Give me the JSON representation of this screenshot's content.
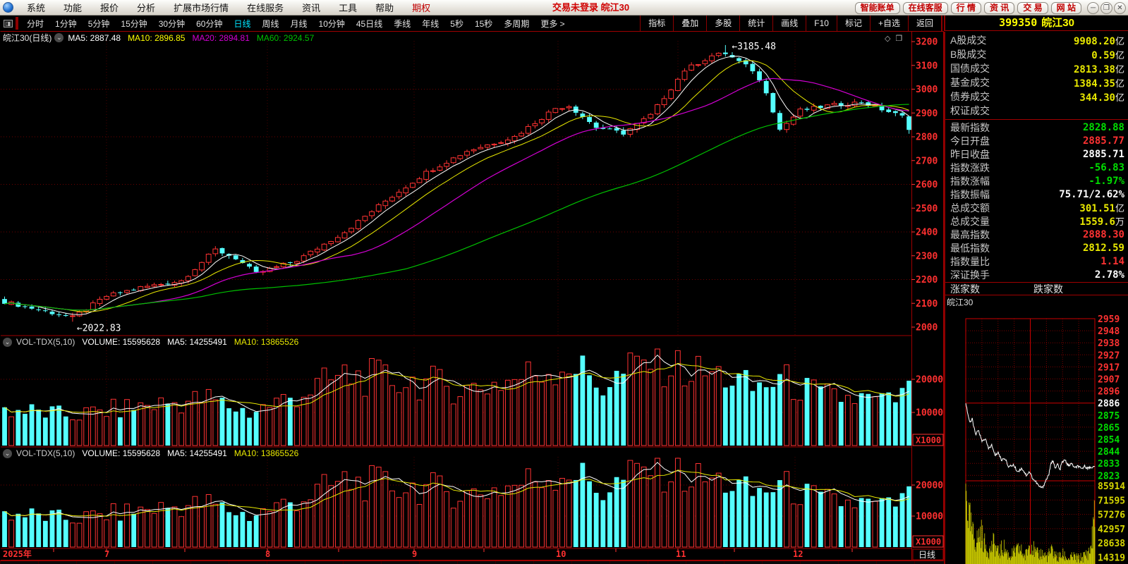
{
  "icons": {
    "chevron_down": "⌄",
    "diamond": "◇",
    "panes": "❐",
    "split": "◨",
    "minimize": "─",
    "restore": "❐",
    "close": "✕",
    "more_arrow": "›"
  },
  "menubar": {
    "items": [
      "系统",
      "功能",
      "报价",
      "分析",
      "扩展市场行情",
      "在线服务",
      "资讯",
      "工具",
      "帮助",
      "期权"
    ],
    "accent_index": 9
  },
  "titlebar": {
    "login": "交易未登录 皖江30",
    "buttons": [
      "智能账单",
      "在线客服",
      "行 情",
      "资 讯",
      "交 易",
      "网 站"
    ]
  },
  "period_bar": {
    "items": [
      "分时",
      "1分钟",
      "5分钟",
      "15分钟",
      "30分钟",
      "60分钟",
      "日线",
      "周线",
      "月线",
      "10分钟",
      "45日线",
      "季线",
      "年线",
      "5秒",
      "15秒",
      "多周期",
      "更多 >"
    ],
    "active_index": 6,
    "right_items": [
      "指标",
      "叠加",
      "多股",
      "统计",
      "画线",
      "F10",
      "标记",
      "+自选",
      "返回"
    ]
  },
  "chart": {
    "title": "皖江30(日线)",
    "ma_items": [
      {
        "text": "MA5: 2887.48",
        "color": "#ffffff"
      },
      {
        "text": "MA10: 2896.85",
        "color": "#ffff00"
      },
      {
        "text": "MA20: 2894.81",
        "color": "#d400d4"
      },
      {
        "text": "MA60: 2924.57",
        "color": "#00c000"
      }
    ],
    "vol_header_items": [
      {
        "text": "VOL-TDX(5,10)",
        "color": "#d0d0d0"
      },
      {
        "text": "VOLUME: 15595628",
        "color": "#ffffff"
      },
      {
        "text": "MA5: 14255491",
        "color": "#ffffff"
      },
      {
        "text": "MA10: 13865526",
        "color": "#e8e800"
      }
    ],
    "annotations": {
      "high": "←3185.48",
      "low": "←2022.83"
    },
    "x1000_label": "X1000",
    "period_box": "日线",
    "vol_axis_labels": [
      "20000",
      "10000"
    ]
  },
  "chart_data": {
    "type": "candlestick",
    "count": 134,
    "y_ticks": [
      3200,
      3100,
      3000,
      2900,
      2800,
      2700,
      2600,
      2500,
      2400,
      2300,
      2200,
      2100,
      2000
    ],
    "dotted_levels": [
      3000,
      2800,
      2600,
      2400,
      2200
    ],
    "months": [
      {
        "label": "2025年",
        "x": 4
      },
      {
        "label": "7",
        "x": 148
      },
      {
        "label": "8",
        "x": 376
      },
      {
        "label": "9",
        "x": 584
      },
      {
        "label": "10",
        "x": 788
      },
      {
        "label": "11",
        "x": 958
      },
      {
        "label": "12",
        "x": 1124
      }
    ],
    "close_anchors": [
      [
        0,
        2106
      ],
      [
        10,
        2040
      ],
      [
        15,
        2130
      ],
      [
        20,
        2166
      ],
      [
        26,
        2195
      ],
      [
        31,
        2325
      ],
      [
        34,
        2290
      ],
      [
        37,
        2225
      ],
      [
        43,
        2280
      ],
      [
        50,
        2400
      ],
      [
        56,
        2530
      ],
      [
        62,
        2650
      ],
      [
        68,
        2740
      ],
      [
        75,
        2800
      ],
      [
        81,
        2920
      ],
      [
        83,
        2930
      ],
      [
        85,
        2885
      ],
      [
        87,
        2840
      ],
      [
        91,
        2815
      ],
      [
        95,
        2890
      ],
      [
        100,
        3080
      ],
      [
        104,
        3140
      ],
      [
        106,
        3150
      ],
      [
        110,
        3080
      ],
      [
        112,
        2990
      ],
      [
        114,
        2830
      ],
      [
        117,
        2910
      ],
      [
        121,
        2930
      ],
      [
        126,
        2945
      ],
      [
        129,
        2915
      ],
      [
        132,
        2885
      ],
      [
        133,
        2828.88
      ]
    ],
    "volume_anchors": [
      [
        0,
        11000
      ],
      [
        10,
        9000
      ],
      [
        20,
        12000
      ],
      [
        30,
        14000
      ],
      [
        36,
        10000
      ],
      [
        44,
        16000
      ],
      [
        50,
        21000
      ],
      [
        56,
        20000
      ],
      [
        62,
        19000
      ],
      [
        68,
        17000
      ],
      [
        75,
        20000
      ],
      [
        83,
        25000
      ],
      [
        88,
        18000
      ],
      [
        95,
        26000
      ],
      [
        101,
        22000
      ],
      [
        106,
        21000
      ],
      [
        110,
        17000
      ],
      [
        114,
        20000
      ],
      [
        120,
        15000
      ],
      [
        126,
        14000
      ],
      [
        130,
        13000
      ],
      [
        133,
        16000
      ]
    ],
    "pinned": {
      "low_index": 10,
      "low": 2022.83,
      "high_index": 106,
      "high": 3185.48,
      "last": {
        "open": 2885.77,
        "high": 2888.3,
        "low": 2812.59,
        "close": 2828.88
      }
    },
    "colors": {
      "up": "#ff3232",
      "down": "#55ffff",
      "ma5": "#ffffff",
      "ma10": "#e8e800",
      "ma20": "#d400d4",
      "ma60": "#00c000",
      "axis": "#ff3030",
      "frame": "#a00000"
    }
  },
  "quote_panel": {
    "code": "399350",
    "name": "皖江30",
    "market_rows": [
      {
        "label": "A股成交",
        "value": "9908.20",
        "unit": "亿"
      },
      {
        "label": "B股成交",
        "value": "0.59",
        "unit": "亿"
      },
      {
        "label": "国债成交",
        "value": "2813.38",
        "unit": "亿"
      },
      {
        "label": "基金成交",
        "value": "1384.35",
        "unit": "亿"
      },
      {
        "label": "债券成交",
        "value": "344.30",
        "unit": "亿"
      },
      {
        "label": "权证成交",
        "value": "",
        "unit": ""
      }
    ],
    "index_rows": [
      {
        "label": "最新指数",
        "value": "2828.88",
        "unit": "",
        "color": "#00dd00"
      },
      {
        "label": "今日开盘",
        "value": "2885.77",
        "unit": "",
        "color": "#ff3232"
      },
      {
        "label": "昨日收盘",
        "value": "2885.71",
        "unit": "",
        "color": "#ffffff"
      },
      {
        "label": "指数涨跌",
        "value": "-56.83",
        "unit": "",
        "color": "#00dd00"
      },
      {
        "label": "指数涨幅",
        "value": "-1.97%",
        "unit": "",
        "color": "#00dd00"
      },
      {
        "label": "指数振幅",
        "value": "75.71/2.62%",
        "unit": "",
        "color": "#ffffff"
      },
      {
        "label": "总成交额",
        "value": "301.51",
        "unit": "亿",
        "color": "#e8e800"
      },
      {
        "label": "总成交量",
        "value": "1559.6",
        "unit": "万",
        "color": "#e8e800"
      },
      {
        "label": "最高指数",
        "value": "2888.30",
        "unit": "",
        "color": "#ff3232"
      },
      {
        "label": "最低指数",
        "value": "2812.59",
        "unit": "",
        "color": "#e8e800"
      },
      {
        "label": "指数量比",
        "value": "1.14",
        "unit": "",
        "color": "#ff3232"
      },
      {
        "label": "深证换手",
        "value": "2.78%",
        "unit": "",
        "color": "#ffffff"
      }
    ],
    "updown": {
      "up_label": "涨家数",
      "down_label": "跌家数"
    },
    "mini_chart": {
      "label": "皖江30",
      "price_ticks": [
        {
          "v": "2959",
          "c": "#ff3232"
        },
        {
          "v": "2948",
          "c": "#ff3232"
        },
        {
          "v": "2938",
          "c": "#ff3232"
        },
        {
          "v": "2927",
          "c": "#ff3232"
        },
        {
          "v": "2917",
          "c": "#ff3232"
        },
        {
          "v": "2907",
          "c": "#ff3232"
        },
        {
          "v": "2896",
          "c": "#ff3232"
        },
        {
          "v": "2886",
          "c": "#ffffff"
        },
        {
          "v": "2875",
          "c": "#00dd00"
        },
        {
          "v": "2865",
          "c": "#00dd00"
        },
        {
          "v": "2854",
          "c": "#00dd00"
        },
        {
          "v": "2844",
          "c": "#00dd00"
        },
        {
          "v": "2833",
          "c": "#00dd00"
        },
        {
          "v": "2823",
          "c": "#00dd00"
        }
      ],
      "volume_ticks": [
        "85914",
        "71595",
        "57276",
        "42957",
        "28638",
        "14319"
      ],
      "prev_close": 2886,
      "line_anchors": [
        [
          0,
          2886
        ],
        [
          4,
          2876
        ],
        [
          8,
          2868
        ],
        [
          12,
          2872
        ],
        [
          18,
          2858
        ],
        [
          24,
          2862
        ],
        [
          30,
          2852
        ],
        [
          36,
          2855
        ],
        [
          42,
          2846
        ],
        [
          48,
          2849
        ],
        [
          54,
          2840
        ],
        [
          60,
          2843
        ],
        [
          66,
          2836
        ],
        [
          72,
          2838
        ],
        [
          80,
          2830
        ],
        [
          88,
          2832
        ],
        [
          96,
          2826
        ],
        [
          104,
          2829
        ],
        [
          112,
          2823
        ],
        [
          118,
          2826
        ],
        [
          124,
          2820
        ],
        [
          130,
          2817
        ],
        [
          136,
          2813
        ],
        [
          142,
          2812
        ],
        [
          148,
          2818
        ],
        [
          154,
          2824
        ],
        [
          158,
          2833
        ],
        [
          162,
          2836
        ],
        [
          166,
          2828
        ],
        [
          170,
          2833
        ],
        [
          174,
          2827
        ],
        [
          178,
          2834
        ],
        [
          184,
          2836
        ],
        [
          190,
          2831
        ],
        [
          196,
          2833
        ],
        [
          202,
          2829
        ],
        [
          208,
          2831
        ],
        [
          214,
          2828
        ],
        [
          220,
          2831
        ],
        [
          226,
          2829
        ],
        [
          232,
          2830
        ],
        [
          239,
          2830
        ]
      ],
      "volume_anchors": [
        [
          0,
          82000
        ],
        [
          6,
          55000
        ],
        [
          12,
          38000
        ],
        [
          20,
          30000
        ],
        [
          28,
          40000
        ],
        [
          36,
          25000
        ],
        [
          44,
          20000
        ],
        [
          52,
          28000
        ],
        [
          60,
          18000
        ],
        [
          70,
          24000
        ],
        [
          80,
          15000
        ],
        [
          90,
          18000
        ],
        [
          100,
          22000
        ],
        [
          110,
          14000
        ],
        [
          120,
          30000
        ],
        [
          130,
          16000
        ],
        [
          140,
          18000
        ],
        [
          150,
          14000
        ],
        [
          160,
          20000
        ],
        [
          170,
          13000
        ],
        [
          180,
          16000
        ],
        [
          190,
          12000
        ],
        [
          200,
          14000
        ],
        [
          210,
          12000
        ],
        [
          220,
          15000
        ],
        [
          230,
          20000
        ],
        [
          236,
          40000
        ],
        [
          239,
          78000
        ]
      ]
    }
  }
}
